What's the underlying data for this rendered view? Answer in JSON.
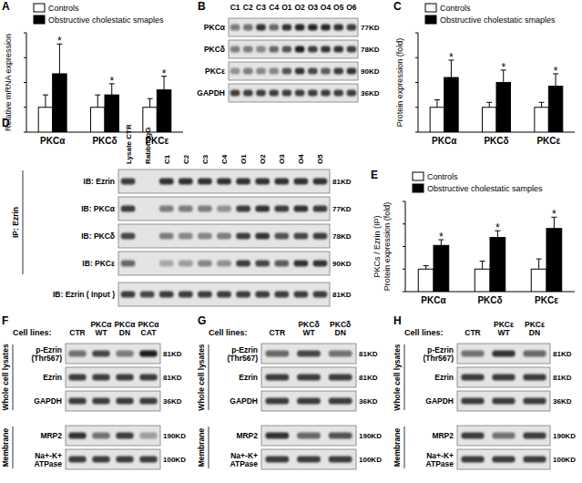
{
  "chart_data": [
    {
      "panel": "A",
      "type": "bar",
      "y_label": [
        "Relative mRNA expression"
      ],
      "categories": [
        "PKCα",
        "PKCδ",
        "PKCε"
      ],
      "ylim": [
        0,
        4
      ],
      "yticks": [
        0,
        1,
        2,
        3,
        4
      ],
      "tick_labels": "x",
      "legend": "top",
      "series": [
        {
          "name": "Controls",
          "color": "#ffffff",
          "values": [
            1,
            1,
            1
          ],
          "error": [
            0.5,
            0.5,
            0.35
          ]
        },
        {
          "name": "Obstructive cholestatic smaples",
          "color": "#000000",
          "values": [
            2.35,
            1.5,
            1.7
          ],
          "error": [
            1.2,
            0.45,
            0.55
          ],
          "significance": [
            "*",
            "*",
            "*"
          ]
        }
      ]
    },
    {
      "panel": "C",
      "type": "bar",
      "y_label": [
        "Protein expression (fold)"
      ],
      "categories": [
        "PKCα",
        "PKCδ",
        "PKCε"
      ],
      "ylim": [
        0,
        4
      ],
      "yticks": [
        0,
        1,
        2,
        3,
        4
      ],
      "tick_labels": "x",
      "legend": "top",
      "series": [
        {
          "name": "Controls",
          "color": "#ffffff",
          "values": [
            1,
            1,
            1
          ],
          "error": [
            0.3,
            0.2,
            0.2
          ]
        },
        {
          "name": "Obstructive cholestatic smaples",
          "color": "#000000",
          "values": [
            2.2,
            2.0,
            1.85
          ],
          "error": [
            0.7,
            0.5,
            0.5
          ],
          "significance": [
            "*",
            "*",
            "*"
          ]
        }
      ]
    },
    {
      "panel": "E",
      "type": "bar",
      "y_label": [
        "PKCs / Ezrin (IP)",
        "Protein expression (fold)"
      ],
      "categories": [
        "PKCα",
        "PKCδ",
        "PKCε"
      ],
      "ylim": [
        0,
        4
      ],
      "yticks": [
        0,
        1,
        2,
        3,
        4
      ],
      "tick_labels": "x",
      "legend": "top",
      "series": [
        {
          "name": "Controls",
          "color": "#ffffff",
          "values": [
            1,
            1,
            1
          ],
          "error": [
            0.15,
            0.35,
            0.45
          ]
        },
        {
          "name": "Obstructive cholestatic samples",
          "color": "#000000",
          "values": [
            2.05,
            2.4,
            2.8
          ],
          "error": [
            0.25,
            0.3,
            0.5
          ],
          "significance": [
            "*",
            "*",
            "*"
          ]
        }
      ]
    }
  ],
  "blots": [
    {
      "panel": "B",
      "lanes": [
        "C1",
        "C2",
        "C3",
        "C4",
        "O1",
        "O2",
        "O3",
        "O4",
        "O5",
        "O6"
      ],
      "groups": [
        {
          "rows": [
            {
              "label": [
                "PKCα"
              ],
              "size": "77KD",
              "bands": [
                0.5,
                0.55,
                0.85,
                0.6,
                0.85,
                0.9,
                0.9,
                0.9,
                0.85,
                0.8
              ]
            },
            {
              "label": [
                "PKCδ"
              ],
              "size": "78KD",
              "bands": [
                0.5,
                0.5,
                0.45,
                0.6,
                0.7,
                0.95,
                0.8,
                0.85,
                0.85,
                0.8
              ]
            },
            {
              "label": [
                "PKCε"
              ],
              "size": "90KD",
              "bands": [
                0.4,
                0.5,
                0.45,
                0.45,
                0.7,
                0.85,
                0.75,
                0.65,
                0.8,
                0.85
              ]
            },
            {
              "label": [
                "GAPDH"
              ],
              "size": "36KD",
              "bands": [
                0.8,
                0.8,
                0.8,
                0.8,
                0.8,
                0.8,
                0.8,
                0.8,
                0.8,
                0.8
              ]
            }
          ]
        }
      ]
    },
    {
      "panel": "D",
      "lanes": [
        "Lysate CTR",
        "Rabbit IgG",
        "C1",
        "C2",
        "C3",
        "C4",
        "O1",
        "O2",
        "O3",
        "O4",
        "O5"
      ],
      "groups": [
        {
          "label": "IP: Ezrin",
          "rows": [
            {
              "label": [
                "IB: Ezrin"
              ],
              "size": "81KD",
              "bands": [
                0.8,
                0,
                0.85,
                0.85,
                0.85,
                0.85,
                0.85,
                0.85,
                0.85,
                0.85,
                0.85
              ]
            },
            {
              "label": [
                "IB: PKCα"
              ],
              "size": "77KD",
              "bands": [
                0.8,
                0,
                0.5,
                0.5,
                0.5,
                0.4,
                0.8,
                0.85,
                0.8,
                0.85,
                0.8
              ]
            },
            {
              "label": [
                "IB: PKCδ"
              ],
              "size": "78KD",
              "bands": [
                0.75,
                0,
                0.5,
                0.45,
                0.45,
                0.5,
                0.8,
                0.85,
                0.7,
                0.75,
                0.8
              ]
            },
            {
              "label": [
                "IB: PKCε"
              ],
              "size": "90KD",
              "bands": [
                0.6,
                0,
                0.3,
                0.35,
                0.45,
                0.4,
                0.8,
                0.75,
                0.65,
                0.85,
                0.85
              ]
            }
          ]
        },
        {
          "rows": [
            {
              "label": [
                "IB: Ezrin  ( Input )"
              ],
              "size": "81KD",
              "bands": [
                0.8,
                0.75,
                0.8,
                0.8,
                0.8,
                0.8,
                0.8,
                0.8,
                0.8,
                0.8,
                0.8
              ]
            }
          ]
        }
      ]
    },
    {
      "panel": "F",
      "lane_title": "Cell lines:",
      "lanes": [
        "CTR",
        "PKCα WT",
        "PKCα DN",
        "PKCα CAT"
      ],
      "groups": [
        {
          "label": "Whole cell lysates",
          "rows": [
            {
              "label": [
                "p-Ezrin",
                "(Thr567)"
              ],
              "size": "81KD",
              "bands": [
                0.55,
                0.75,
                0.5,
                0.95
              ]
            },
            {
              "label": [
                "Ezrin"
              ],
              "size": "81KD",
              "bands": [
                0.8,
                0.8,
                0.8,
                0.8
              ]
            },
            {
              "label": [
                "GAPDH"
              ],
              "size": "36KD",
              "bands": [
                0.8,
                0.8,
                0.8,
                0.8
              ]
            }
          ]
        },
        {
          "label": "Membrane",
          "rows": [
            {
              "label": [
                "MRP2"
              ],
              "size": "190KD",
              "bands": [
                0.85,
                0.55,
                0.8,
                0.35
              ]
            },
            {
              "label": [
                "Na+-K+",
                "ATPase"
              ],
              "size": "100KD",
              "bands": [
                0.8,
                0.8,
                0.8,
                0.8
              ]
            }
          ]
        }
      ]
    },
    {
      "panel": "G",
      "lane_title": "Cell lines:",
      "lanes": [
        "CTR",
        "PKCδ WT",
        "PKCδ DN"
      ],
      "groups": [
        {
          "label": "Whole cell lysates",
          "rows": [
            {
              "label": [
                "p-Ezrin",
                "(Thr567)"
              ],
              "size": "81KD",
              "bands": [
                0.6,
                0.75,
                0.55
              ]
            },
            {
              "label": [
                "Ezrin"
              ],
              "size": "81KD",
              "bands": [
                0.8,
                0.8,
                0.8
              ]
            },
            {
              "label": [
                "GAPDH"
              ],
              "size": "36KD",
              "bands": [
                0.8,
                0.8,
                0.8
              ]
            }
          ]
        },
        {
          "label": "Membrane",
          "rows": [
            {
              "label": [
                "MRP2"
              ],
              "size": "190KD",
              "bands": [
                0.85,
                0.6,
                0.7
              ]
            },
            {
              "label": [
                "Na+-K+",
                "ATPase"
              ],
              "size": "100KD",
              "bands": [
                0.8,
                0.8,
                0.8
              ]
            }
          ]
        }
      ]
    },
    {
      "panel": "H",
      "lane_title": "Cell lines:",
      "lanes": [
        "CTR",
        "PKCε WT",
        "PKCε DN"
      ],
      "groups": [
        {
          "label": "Whole cell lysates",
          "rows": [
            {
              "label": [
                "p-Ezrin",
                "(Thr567)"
              ],
              "size": "81KD",
              "bands": [
                0.55,
                0.85,
                0.6
              ]
            },
            {
              "label": [
                "Ezrin"
              ],
              "size": "81KD",
              "bands": [
                0.8,
                0.8,
                0.8
              ]
            },
            {
              "label": [
                "GAPDH"
              ],
              "size": "36KD",
              "bands": [
                0.8,
                0.8,
                0.8
              ]
            }
          ]
        },
        {
          "label": "Membrane",
          "rows": [
            {
              "label": [
                "MRP2"
              ],
              "size": "190KD",
              "bands": [
                0.8,
                0.55,
                0.8
              ]
            },
            {
              "label": [
                "Na+-K+",
                "ATPase"
              ],
              "size": "100KD",
              "bands": [
                0.8,
                0.8,
                0.8
              ]
            }
          ]
        }
      ]
    }
  ]
}
